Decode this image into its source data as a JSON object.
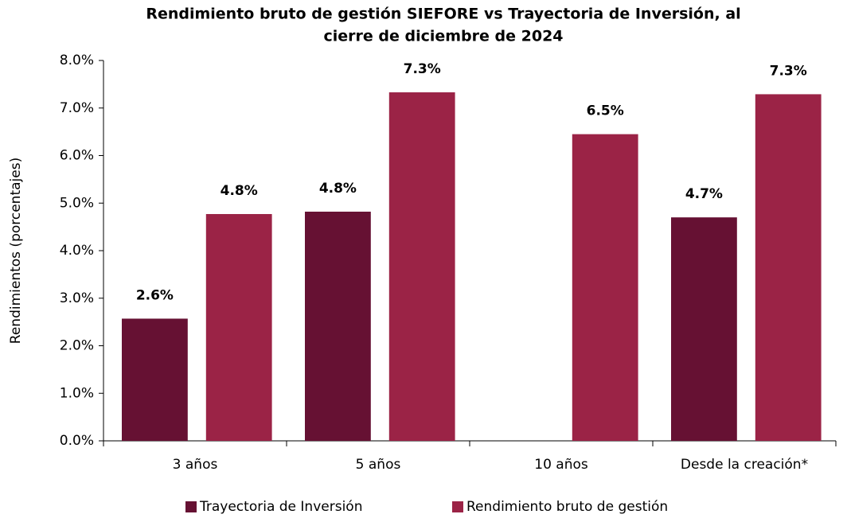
{
  "chart_data": {
    "type": "bar",
    "title": [
      "Rendimiento bruto de gestión SIEFORE vs Trayectoria de Inversión, al",
      "cierre de diciembre de 2024"
    ],
    "y_label": "Rendimientos (porcentajes)",
    "categories": [
      "3 años",
      "5 años",
      "10 años",
      "Desde la creación*"
    ],
    "series": [
      {
        "name": "Trayectoria de Inversión",
        "color": "#661133",
        "values": [
          2.57,
          4.82,
          null,
          4.7
        ],
        "value_labels": [
          "2.6%",
          "4.8%",
          null,
          "4.7%"
        ]
      },
      {
        "name": "Rendimiento bruto de gestión",
        "color": "#9b2346",
        "values": [
          4.77,
          7.33,
          6.45,
          7.29
        ],
        "value_labels": [
          "4.8%",
          "7.3%",
          "6.5%",
          "7.3%"
        ]
      }
    ],
    "ylim": [
      0,
      8
    ],
    "yticks": [
      {
        "value": 0,
        "label": "0.0%"
      },
      {
        "value": 1,
        "label": "1.0%"
      },
      {
        "value": 2,
        "label": "2.0%"
      },
      {
        "value": 3,
        "label": "3.0%"
      },
      {
        "value": 4,
        "label": "4.0%"
      },
      {
        "value": 5,
        "label": "5.0%"
      },
      {
        "value": 6,
        "label": "6.0%"
      },
      {
        "value": 7,
        "label": "7.0%"
      },
      {
        "value": 8,
        "label": "8.0%"
      }
    ],
    "legend": "bottom"
  }
}
